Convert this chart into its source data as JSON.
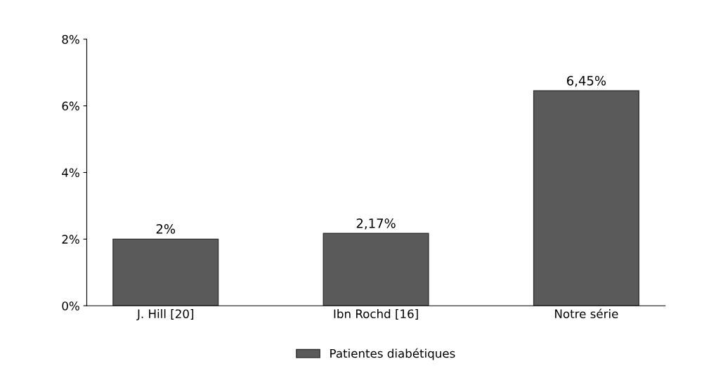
{
  "chart_data": {
    "type": "bar",
    "categories": [
      "J. Hill [20]",
      "Ibn Rochd [16]",
      "Notre série"
    ],
    "series": [
      {
        "name": "Patientes diabétiques",
        "color": "#5a5a5a",
        "values": [
          2,
          2.17,
          6.45
        ],
        "value_labels": [
          "2%",
          "2,17%",
          "6,45%"
        ]
      }
    ],
    "ylim": [
      0,
      8
    ],
    "yticks": [
      {
        "value": 0,
        "label": "0%"
      },
      {
        "value": 2,
        "label": "2%"
      },
      {
        "value": 4,
        "label": "4%"
      },
      {
        "value": 6,
        "label": "6%"
      },
      {
        "value": 8,
        "label": "8%"
      }
    ],
    "grid": false,
    "legend": "bottom"
  }
}
